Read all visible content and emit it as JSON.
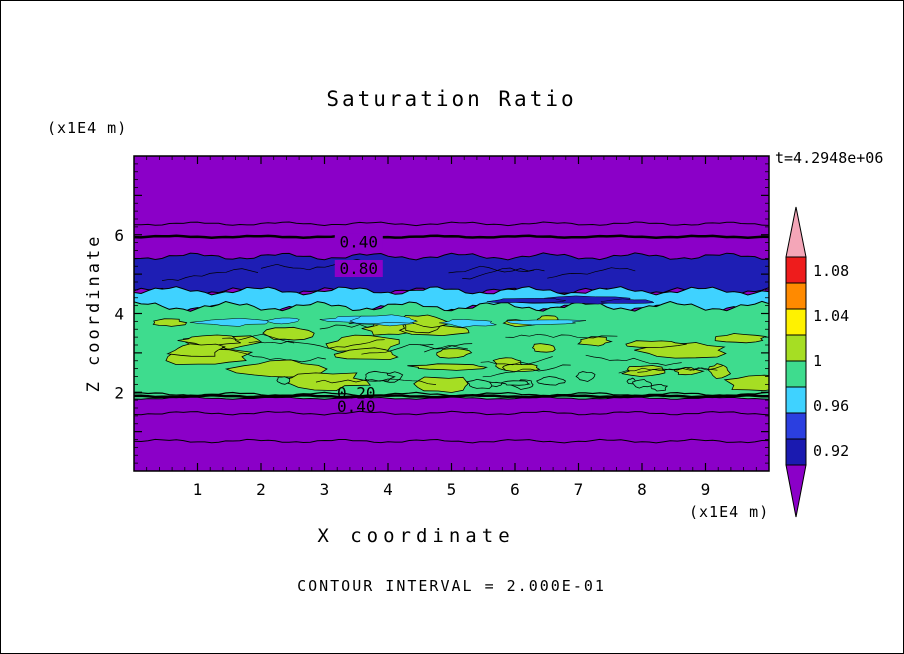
{
  "chart_data": {
    "type": "contour",
    "title": "Saturation Ratio",
    "time_label": "t=4.2948e+06",
    "xlabel": "X coordinate",
    "ylabel": "Z coordinate",
    "x_unit_label": "(x1E4 m)",
    "y_unit_label": "(x1E4 m)",
    "footer_label": "CONTOUR INTERVAL = 2.000E-01",
    "contour_interval": 0.2,
    "xlim": [
      0,
      10
    ],
    "ylim": [
      0,
      8
    ],
    "x_ticks": [
      1,
      2,
      3,
      4,
      5,
      6,
      7,
      8,
      9
    ],
    "y_ticks": [
      2,
      4,
      6
    ],
    "grid": false,
    "legend_position": "right-colorbar",
    "bands": [
      {
        "name": "background-low-saturation",
        "color": "#8B00C8",
        "y_from": -0.3,
        "y_to": 8.3
      },
      {
        "name": "dark-blue-band",
        "color": "#1E1EB4",
        "y_from": 4.55,
        "y_to": 5.45
      },
      {
        "name": "cyan-band",
        "color": "#3FD2FF",
        "y_from": 4.12,
        "y_to": 4.58
      },
      {
        "name": "saturated-green-band",
        "color": "#3EDC8E",
        "y_from": 1.85,
        "y_to": 4.18
      }
    ],
    "patch_colors": {
      "high_patch": "#A6DE23",
      "cyan_wisp": "#3FD2FF",
      "dark_wisp": "#1E1EB4"
    },
    "contour_lines": [
      {
        "y": 6.28,
        "w": 1.0
      },
      {
        "y": 5.95,
        "w": 2.5
      },
      {
        "y": 1.95,
        "w": 1.2
      },
      {
        "y": 1.9,
        "w": 2.5
      },
      {
        "y": 1.47,
        "w": 1.0
      },
      {
        "y": 0.76,
        "w": 1.0
      }
    ],
    "contour_labels": [
      {
        "text": "0.40",
        "x": 3.54,
        "y": 5.8,
        "bg": "#8B00C8"
      },
      {
        "text": "0.80",
        "x": 3.54,
        "y": 5.13,
        "bg": "#8B00C8"
      },
      {
        "text": "0.20",
        "x": 3.5,
        "y": 1.97,
        "bg": ""
      },
      {
        "text": "0.40",
        "x": 3.5,
        "y": 1.63,
        "bg": ""
      }
    ],
    "colorbar": {
      "labels": [
        "1.08",
        "1.04",
        "1",
        "0.96",
        "0.92"
      ],
      "arrow_top_color": "#F4A6B8",
      "segment_colors": [
        "#EE1C1C",
        "#FF8A00",
        "#FFF200",
        "#A6DE23",
        "#3EDC8E",
        "#3FD2FF",
        "#2B3FE0",
        "#1A1AB0"
      ],
      "arrow_bottom_color": "#8B00C8"
    }
  }
}
